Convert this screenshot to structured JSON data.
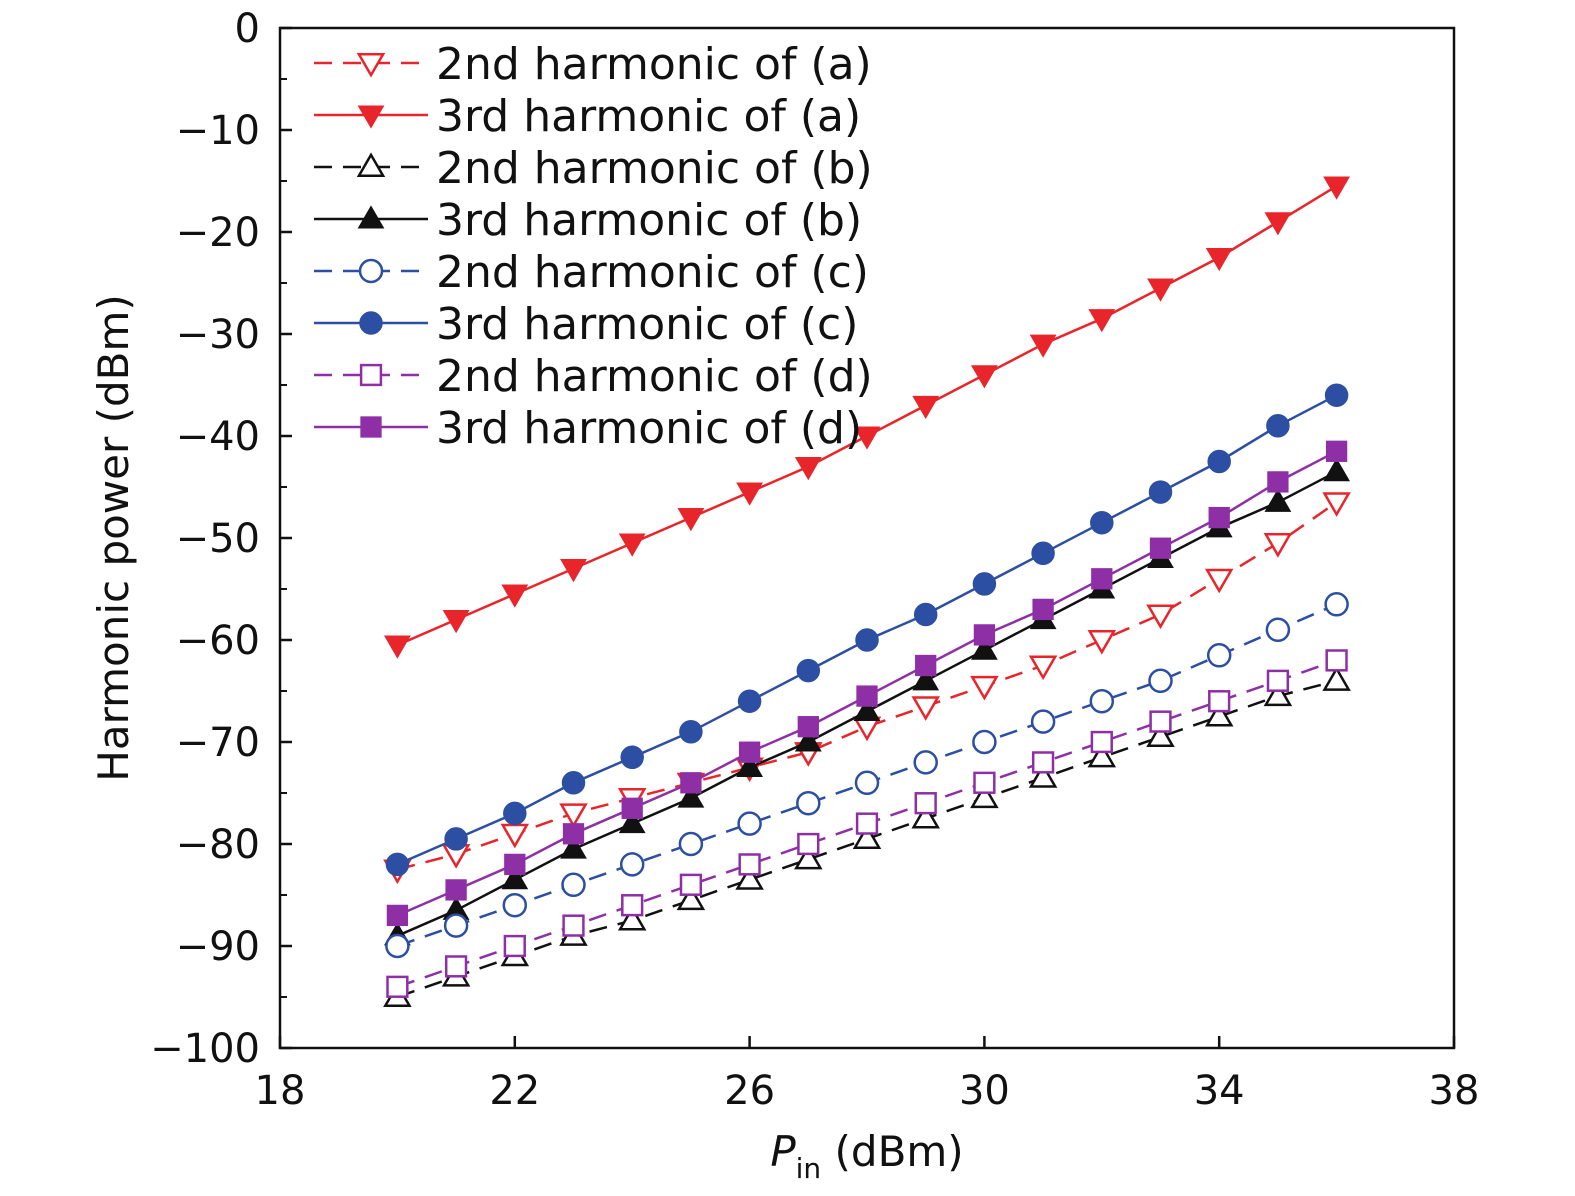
{
  "chart_data": {
    "type": "line",
    "title": "",
    "xlabel_main": "P",
    "xlabel_sub": "in",
    "xlabel_unit": " (dBm)",
    "ylabel": "Harmonic power (dBm)",
    "xlim": [
      18,
      38
    ],
    "ylim": [
      -100,
      0
    ],
    "xticks": [
      18,
      22,
      26,
      30,
      34,
      38
    ],
    "yticks": [
      0,
      -10,
      -20,
      -30,
      -40,
      -50,
      -60,
      -70,
      -80,
      -90,
      -100
    ],
    "xtick_labels": [
      "18",
      "22",
      "26",
      "30",
      "34",
      "38"
    ],
    "ytick_labels": [
      "0",
      "−10",
      "−20",
      "−30",
      "−40",
      "−50",
      "−60",
      "−70",
      "−80",
      "−90",
      "−100"
    ],
    "grid": false,
    "legend_position": "top-left",
    "x": [
      20,
      21,
      22,
      23,
      24,
      25,
      26,
      27,
      28,
      29,
      30,
      31,
      32,
      33,
      34,
      35,
      36
    ],
    "series": [
      {
        "name": "2nd harmonic of (a)",
        "color": "#e8252b",
        "dashed": true,
        "marker": "triangle-down",
        "filled": false,
        "values": [
          -82.5,
          -81,
          -79,
          -77,
          -75.5,
          -74,
          -72.5,
          -71,
          -68.5,
          -66.5,
          -64.5,
          -62.5,
          -60,
          -57.5,
          -54,
          -50.5,
          -46.5
        ]
      },
      {
        "name": "3rd harmonic of (a)",
        "color": "#e8252b",
        "dashed": false,
        "marker": "triangle-down",
        "filled": true,
        "values": [
          -60.5,
          -58,
          -55.5,
          -53,
          -50.5,
          -48,
          -45.5,
          -43,
          -40,
          -37,
          -34,
          -31,
          -28.5,
          -25.5,
          -22.5,
          -19,
          -15.5
        ]
      },
      {
        "name": "2nd harmonic of (b)",
        "color": "#111111",
        "dashed": true,
        "marker": "triangle-up",
        "filled": false,
        "values": [
          -95,
          -93,
          -91,
          -89,
          -87.5,
          -85.5,
          -83.5,
          -81.5,
          -79.5,
          -77.5,
          -75.5,
          -73.5,
          -71.5,
          -69.5,
          -67.5,
          -65.5,
          -64
        ]
      },
      {
        "name": "3rd harmonic of (b)",
        "color": "#111111",
        "dashed": false,
        "marker": "triangle-up",
        "filled": true,
        "values": [
          -89,
          -86.5,
          -83.5,
          -80.5,
          -78,
          -75.5,
          -72.5,
          -70,
          -67,
          -64,
          -61,
          -58,
          -55,
          -52,
          -49,
          -46.5,
          -43.5
        ]
      },
      {
        "name": "2nd harmonic of (c)",
        "color": "#2c4fa3",
        "dashed": true,
        "marker": "circle",
        "filled": false,
        "values": [
          -90,
          -88,
          -86,
          -84,
          -82,
          -80,
          -78,
          -76,
          -74,
          -72,
          -70,
          -68,
          -66,
          -64,
          -61.5,
          -59,
          -56.5
        ]
      },
      {
        "name": "3rd harmonic of (c)",
        "color": "#2c4fa3",
        "dashed": false,
        "marker": "circle",
        "filled": true,
        "values": [
          -82,
          -79.5,
          -77,
          -74,
          -71.5,
          -69,
          -66,
          -63,
          -60,
          -57.5,
          -54.5,
          -51.5,
          -48.5,
          -45.5,
          -42.5,
          -39,
          -36
        ]
      },
      {
        "name": "2nd harmonic of (d)",
        "color": "#8e2fa6",
        "dashed": true,
        "marker": "square",
        "filled": false,
        "values": [
          -94,
          -92,
          -90,
          -88,
          -86,
          -84,
          -82,
          -80,
          -78,
          -76,
          -74,
          -72,
          -70,
          -68,
          -66,
          -64,
          -62
        ]
      },
      {
        "name": "3rd harmonic of (d)",
        "color": "#8e2fa6",
        "dashed": false,
        "marker": "square",
        "filled": true,
        "values": [
          -87,
          -84.5,
          -82,
          -79,
          -76.5,
          -74,
          -71,
          -68.5,
          -65.5,
          -62.5,
          -59.5,
          -57,
          -54,
          -51,
          -48,
          -44.5,
          -41.5
        ]
      }
    ]
  }
}
